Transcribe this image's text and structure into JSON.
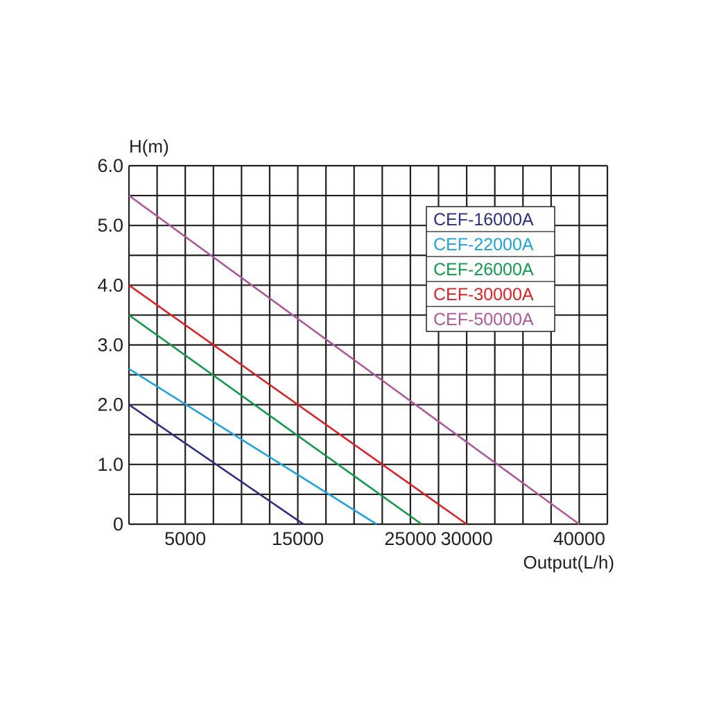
{
  "chart_data": {
    "type": "line",
    "ylabel": "H(m)",
    "xlabel": "Output(L/h)",
    "xlim": [
      0,
      42500
    ],
    "ylim": [
      0,
      6.0
    ],
    "x_ticks": [
      {
        "value": 5000,
        "label": "5000"
      },
      {
        "value": 15000,
        "label": "15000"
      },
      {
        "value": 25000,
        "label": "25000"
      },
      {
        "value": 30000,
        "label": "30000"
      },
      {
        "value": 40000,
        "label": "40000"
      }
    ],
    "y_ticks": [
      {
        "value": 0,
        "label": "0"
      },
      {
        "value": 1.0,
        "label": "1.0"
      },
      {
        "value": 2.0,
        "label": "2.0"
      },
      {
        "value": 3.0,
        "label": "3.0"
      },
      {
        "value": 4.0,
        "label": "4.0"
      },
      {
        "value": 5.0,
        "label": "5.0"
      },
      {
        "value": 6.0,
        "label": "6.0"
      }
    ],
    "grid": true,
    "legend_position": "top-right",
    "series": [
      {
        "name": "CEF-16000A",
        "color": "#2b2e83",
        "points": [
          [
            0,
            2.0
          ],
          [
            15500,
            0
          ]
        ]
      },
      {
        "name": "CEF-22000A",
        "color": "#1ba4e0",
        "points": [
          [
            0,
            2.6
          ],
          [
            22000,
            0
          ]
        ]
      },
      {
        "name": "CEF-26000A",
        "color": "#0f9b4a",
        "points": [
          [
            0,
            3.5
          ],
          [
            26000,
            0
          ]
        ]
      },
      {
        "name": "CEF-30000A",
        "color": "#e31e24",
        "points": [
          [
            0,
            4.0
          ],
          [
            30000,
            0
          ]
        ]
      },
      {
        "name": "CEF-50000A",
        "color": "#b0579c",
        "points": [
          [
            0,
            5.5
          ],
          [
            40000,
            0
          ]
        ]
      }
    ]
  }
}
